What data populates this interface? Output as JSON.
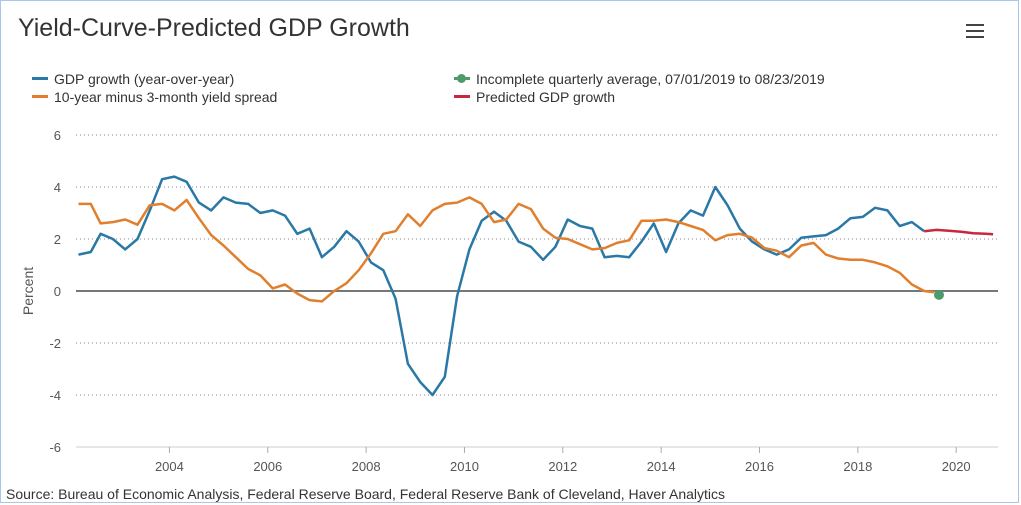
{
  "header": {
    "title": "Yield-Curve-Predicted GDP Growth",
    "menu_icon": "hamburger-menu-icon"
  },
  "colors": {
    "gdp": "#2a78a6",
    "spread": "#e07f2e",
    "incomplete": "#4e9a6b",
    "predicted": "#c8283e"
  },
  "legend": {
    "gdp": "GDP growth (year-over-year)",
    "spread": "10-year minus 3-month yield spread",
    "incomplete": "Incomplete quarterly average, 07/01/2019 to 08/23/2019",
    "predicted": "Predicted GDP growth"
  },
  "source": "Source: Bureau of Economic Analysis, Federal Reserve Board, Federal Reserve Bank of Cleveland, Haver Analytics",
  "chart_data": {
    "type": "line",
    "title": "Yield-Curve-Predicted GDP Growth",
    "xlabel": "",
    "ylabel": "Percent",
    "xlim": [
      2002.1,
      2020.85
    ],
    "ylim": [
      -6,
      6
    ],
    "yticks": [
      -6,
      -4,
      -2,
      0,
      2,
      4,
      6
    ],
    "xticks": [
      2004,
      2006,
      2008,
      2010,
      2012,
      2014,
      2016,
      2018,
      2020
    ],
    "grid": true,
    "legend_position": "top",
    "series": [
      {
        "name": "GDP growth (year-over-year)",
        "key": "gdp",
        "x": [
          2002.15,
          2002.4,
          2002.6,
          2002.85,
          2003.1,
          2003.35,
          2003.6,
          2003.85,
          2004.1,
          2004.35,
          2004.6,
          2004.85,
          2005.1,
          2005.35,
          2005.6,
          2005.85,
          2006.1,
          2006.35,
          2006.6,
          2006.85,
          2007.1,
          2007.35,
          2007.6,
          2007.85,
          2008.1,
          2008.35,
          2008.6,
          2008.85,
          2009.1,
          2009.35,
          2009.6,
          2009.85,
          2010.1,
          2010.35,
          2010.6,
          2010.85,
          2011.1,
          2011.35,
          2011.6,
          2011.85,
          2012.1,
          2012.35,
          2012.6,
          2012.85,
          2013.1,
          2013.35,
          2013.6,
          2013.85,
          2014.1,
          2014.35,
          2014.6,
          2014.85,
          2015.1,
          2015.35,
          2015.6,
          2015.85,
          2016.1,
          2016.35,
          2016.6,
          2016.85,
          2017.1,
          2017.35,
          2017.6,
          2017.85,
          2018.1,
          2018.35,
          2018.6,
          2018.85,
          2019.1,
          2019.35
        ],
        "y": [
          1.4,
          1.5,
          2.2,
          2.0,
          1.6,
          2.0,
          3.1,
          4.3,
          4.4,
          4.2,
          3.4,
          3.1,
          3.6,
          3.4,
          3.35,
          3.0,
          3.1,
          2.9,
          2.2,
          2.4,
          1.3,
          1.7,
          2.3,
          1.9,
          1.1,
          0.8,
          -0.3,
          -2.8,
          -3.5,
          -4.0,
          -3.3,
          -0.2,
          1.6,
          2.7,
          3.05,
          2.7,
          1.9,
          1.7,
          1.2,
          1.7,
          2.75,
          2.5,
          2.4,
          1.3,
          1.35,
          1.3,
          1.9,
          2.6,
          1.5,
          2.6,
          3.1,
          2.9,
          4.0,
          3.3,
          2.4,
          1.9,
          1.6,
          1.4,
          1.6,
          2.05,
          2.1,
          2.15,
          2.4,
          2.8,
          2.85,
          3.2,
          3.1,
          2.5,
          2.65,
          2.3
        ]
      },
      {
        "name": "10-year minus 3-month yield spread",
        "key": "spread",
        "x": [
          2002.15,
          2002.4,
          2002.6,
          2002.85,
          2003.1,
          2003.35,
          2003.6,
          2003.85,
          2004.1,
          2004.35,
          2004.6,
          2004.85,
          2005.1,
          2005.35,
          2005.6,
          2005.85,
          2006.1,
          2006.35,
          2006.6,
          2006.85,
          2007.1,
          2007.35,
          2007.6,
          2007.85,
          2008.1,
          2008.35,
          2008.6,
          2008.85,
          2009.1,
          2009.35,
          2009.6,
          2009.85,
          2010.1,
          2010.35,
          2010.6,
          2010.85,
          2011.1,
          2011.35,
          2011.6,
          2011.85,
          2012.1,
          2012.35,
          2012.6,
          2012.85,
          2013.1,
          2013.35,
          2013.6,
          2013.85,
          2014.1,
          2014.35,
          2014.6,
          2014.85,
          2015.1,
          2015.35,
          2015.6,
          2015.85,
          2016.1,
          2016.35,
          2016.6,
          2016.85,
          2017.1,
          2017.35,
          2017.6,
          2017.85,
          2018.1,
          2018.35,
          2018.6,
          2018.85,
          2019.1,
          2019.35,
          2019.55
        ],
        "y": [
          3.35,
          3.35,
          2.6,
          2.65,
          2.75,
          2.55,
          3.3,
          3.35,
          3.1,
          3.5,
          2.8,
          2.15,
          1.75,
          1.3,
          0.85,
          0.6,
          0.1,
          0.25,
          -0.1,
          -0.35,
          -0.4,
          0.0,
          0.3,
          0.8,
          1.45,
          2.2,
          2.3,
          2.95,
          2.5,
          3.1,
          3.35,
          3.4,
          3.6,
          3.35,
          2.65,
          2.75,
          3.35,
          3.15,
          2.4,
          2.05,
          2.0,
          1.8,
          1.6,
          1.65,
          1.85,
          1.95,
          2.7,
          2.7,
          2.75,
          2.65,
          2.5,
          2.35,
          1.95,
          2.15,
          2.2,
          2.05,
          1.65,
          1.55,
          1.3,
          1.75,
          1.85,
          1.4,
          1.25,
          1.2,
          1.2,
          1.1,
          0.95,
          0.7,
          0.25,
          0.0,
          -0.05
        ]
      },
      {
        "name": "Incomplete quarterly average, 07/01/2019 to 08/23/2019",
        "key": "incomplete",
        "x": [
          2019.65
        ],
        "y": [
          -0.15
        ]
      },
      {
        "name": "Predicted GDP growth",
        "key": "predicted",
        "x": [
          2019.35,
          2019.6,
          2019.85,
          2020.1,
          2020.35,
          2020.6,
          2020.75
        ],
        "y": [
          2.3,
          2.35,
          2.32,
          2.28,
          2.22,
          2.2,
          2.18
        ]
      }
    ]
  }
}
